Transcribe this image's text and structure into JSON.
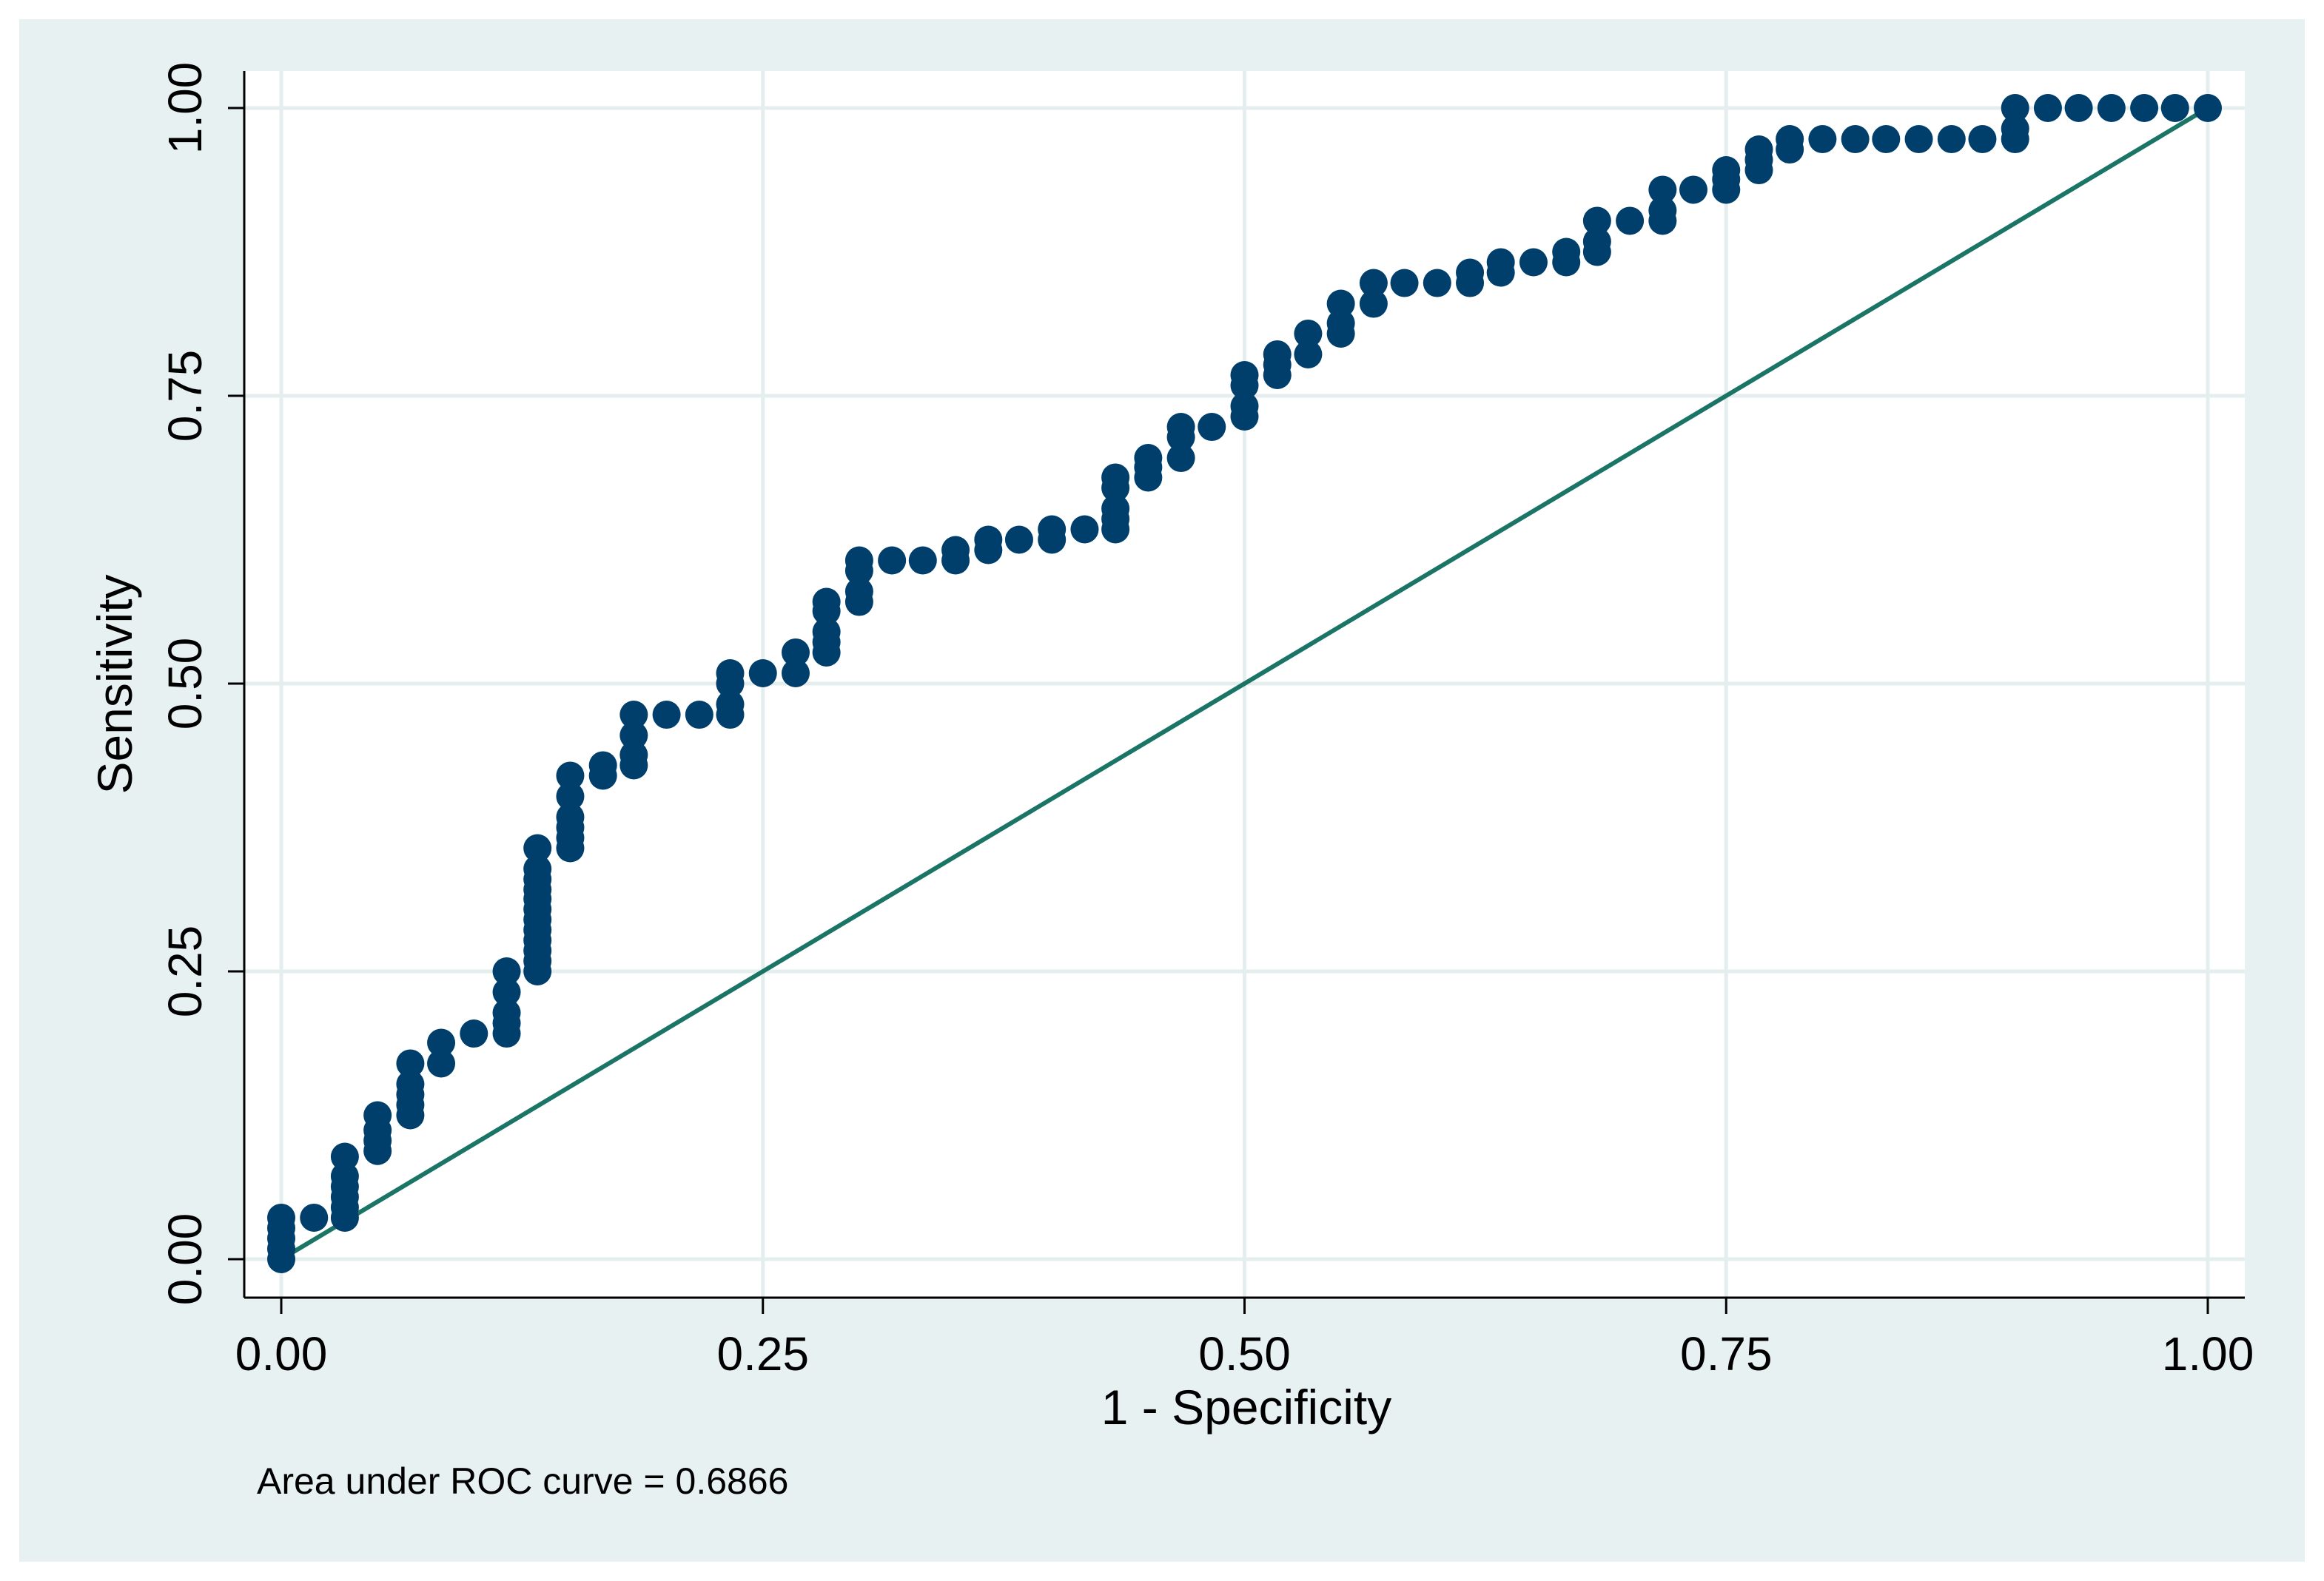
{
  "chart_data": {
    "type": "scatter",
    "title": "",
    "xlabel": "1 - Specificity",
    "ylabel": "Sensitivity",
    "xlim": [
      0,
      1
    ],
    "ylim": [
      0,
      1
    ],
    "xticks": [
      0,
      0.25,
      0.5,
      0.75,
      1
    ],
    "yticks": [
      0,
      0.25,
      0.5,
      0.75,
      1
    ],
    "xtick_labels": [
      "0.00",
      "0.25",
      "0.50",
      "0.75",
      "1.00"
    ],
    "ytick_labels": [
      "0.00",
      "0.25",
      "0.50",
      "0.75",
      "1.00"
    ],
    "grid": true,
    "note": "Area under ROC curve = 0.6866",
    "colors": {
      "background": "#e7f1f1",
      "plot_region": "#ffffff",
      "grid": "#e4eeee",
      "points": "#003f6b",
      "reference_line": "#1a7566"
    },
    "series": [
      {
        "name": "ROC curve",
        "type": "scatter",
        "x": [
          0.0,
          0.0,
          0.0,
          0.0,
          0.0,
          0.017,
          0.033,
          0.033,
          0.033,
          0.033,
          0.033,
          0.033,
          0.05,
          0.05,
          0.05,
          0.05,
          0.067,
          0.067,
          0.067,
          0.067,
          0.067,
          0.083,
          0.083,
          0.1,
          0.117,
          0.117,
          0.117,
          0.117,
          0.117,
          0.133,
          0.133,
          0.133,
          0.133,
          0.133,
          0.133,
          0.133,
          0.133,
          0.133,
          0.133,
          0.133,
          0.133,
          0.15,
          0.15,
          0.15,
          0.15,
          0.15,
          0.15,
          0.167,
          0.167,
          0.183,
          0.183,
          0.183,
          0.183,
          0.2,
          0.217,
          0.233,
          0.233,
          0.233,
          0.233,
          0.25,
          0.267,
          0.267,
          0.283,
          0.283,
          0.283,
          0.283,
          0.283,
          0.3,
          0.3,
          0.3,
          0.3,
          0.317,
          0.333,
          0.35,
          0.35,
          0.367,
          0.367,
          0.383,
          0.4,
          0.4,
          0.417,
          0.433,
          0.433,
          0.433,
          0.433,
          0.433,
          0.45,
          0.45,
          0.45,
          0.467,
          0.467,
          0.467,
          0.483,
          0.5,
          0.5,
          0.5,
          0.5,
          0.517,
          0.517,
          0.517,
          0.533,
          0.533,
          0.55,
          0.55,
          0.55,
          0.567,
          0.567,
          0.583,
          0.6,
          0.617,
          0.617,
          0.633,
          0.633,
          0.65,
          0.667,
          0.667,
          0.683,
          0.683,
          0.683,
          0.7,
          0.717,
          0.717,
          0.717,
          0.733,
          0.75,
          0.75,
          0.75,
          0.767,
          0.767,
          0.767,
          0.783,
          0.783,
          0.8,
          0.817,
          0.833,
          0.85,
          0.867,
          0.883,
          0.9,
          0.9,
          0.9,
          0.917,
          0.933,
          0.95,
          0.967,
          0.983,
          1.0
        ],
        "y": [
          0.0,
          0.009,
          0.018,
          0.027,
          0.036,
          0.036,
          0.036,
          0.045,
          0.054,
          0.063,
          0.072,
          0.089,
          0.094,
          0.103,
          0.112,
          0.125,
          0.125,
          0.134,
          0.143,
          0.152,
          0.17,
          0.17,
          0.188,
          0.196,
          0.196,
          0.205,
          0.214,
          0.232,
          0.25,
          0.25,
          0.259,
          0.268,
          0.277,
          0.286,
          0.295,
          0.304,
          0.313,
          0.321,
          0.33,
          0.339,
          0.357,
          0.357,
          0.366,
          0.375,
          0.384,
          0.402,
          0.42,
          0.42,
          0.429,
          0.429,
          0.438,
          0.455,
          0.473,
          0.473,
          0.473,
          0.473,
          0.482,
          0.5,
          0.509,
          0.509,
          0.509,
          0.527,
          0.527,
          0.536,
          0.545,
          0.563,
          0.571,
          0.571,
          0.58,
          0.598,
          0.607,
          0.607,
          0.607,
          0.607,
          0.616,
          0.616,
          0.625,
          0.625,
          0.625,
          0.634,
          0.634,
          0.634,
          0.643,
          0.652,
          0.67,
          0.679,
          0.679,
          0.688,
          0.696,
          0.696,
          0.714,
          0.723,
          0.723,
          0.732,
          0.741,
          0.759,
          0.768,
          0.768,
          0.777,
          0.786,
          0.786,
          0.804,
          0.804,
          0.813,
          0.83,
          0.83,
          0.848,
          0.848,
          0.848,
          0.848,
          0.857,
          0.857,
          0.866,
          0.866,
          0.866,
          0.875,
          0.875,
          0.884,
          0.902,
          0.902,
          0.902,
          0.911,
          0.929,
          0.929,
          0.929,
          0.938,
          0.946,
          0.946,
          0.955,
          0.964,
          0.964,
          0.973,
          0.973,
          0.973,
          0.973,
          0.973,
          0.973,
          0.973,
          0.973,
          0.982,
          1.0,
          1.0,
          1.0,
          1.0,
          1.0,
          1.0,
          1.0
        ]
      },
      {
        "name": "Reference line",
        "type": "line",
        "x": [
          0,
          1
        ],
        "y": [
          0,
          1
        ]
      }
    ]
  }
}
